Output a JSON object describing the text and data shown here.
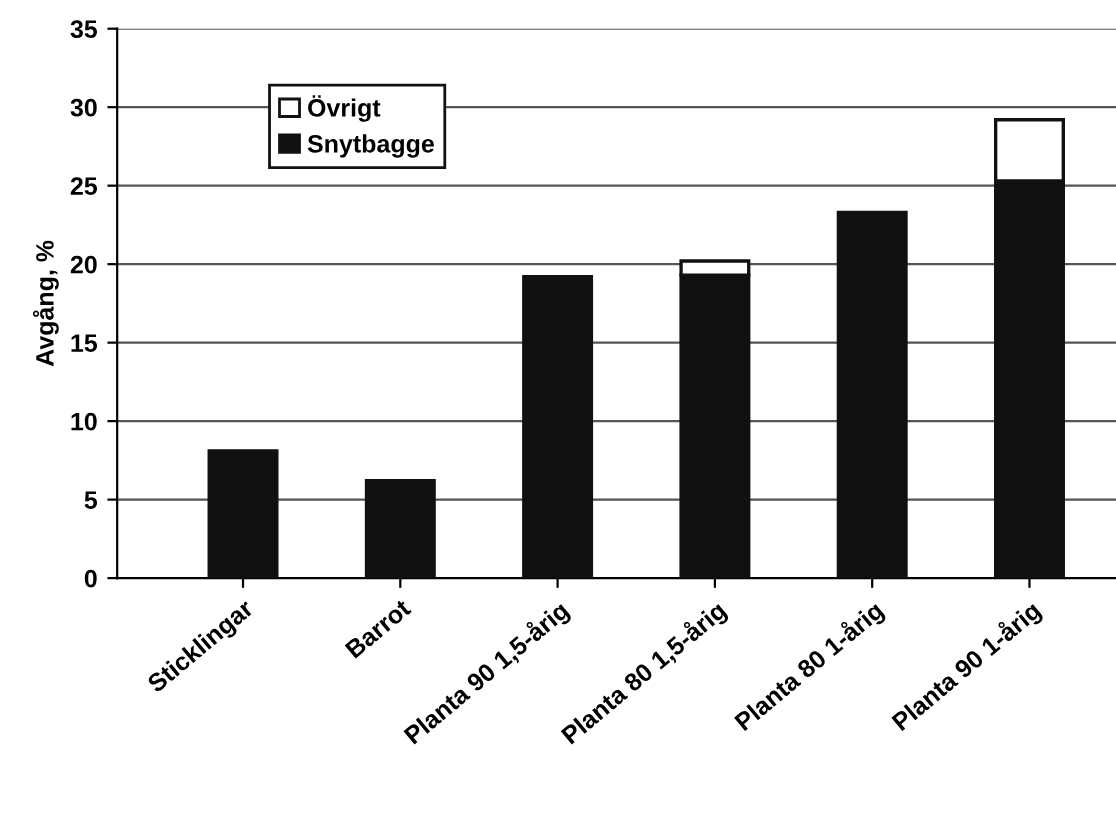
{
  "chart_data": {
    "type": "bar",
    "stacked": true,
    "ylabel": "Avgång, %",
    "categories": [
      "Sticklingar",
      "Barrot",
      "Planta 90 1,5-årig",
      "Planta 80 1,5-årig",
      "Planta 80 1-årig",
      "Planta 90 1-årig"
    ],
    "series": [
      {
        "name": "Snytbagge",
        "color": "#111111",
        "values": [
          8.1,
          6.2,
          19.2,
          19.3,
          23.3,
          25.3
        ]
      },
      {
        "name": "Övrigt",
        "color": "#ffffff",
        "values": [
          null,
          null,
          null,
          0.9,
          null,
          3.9
        ]
      }
    ],
    "ylim": [
      0,
      35
    ],
    "yticks": [
      0,
      5,
      10,
      15,
      20,
      25,
      30,
      35
    ],
    "grid": "y",
    "legend": "top left"
  }
}
